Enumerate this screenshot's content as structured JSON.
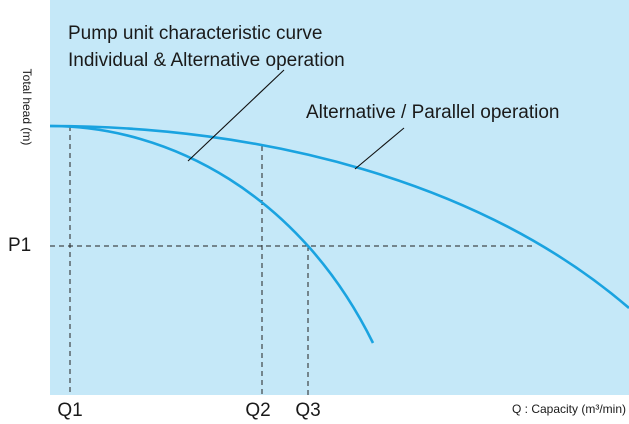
{
  "y_axis_label": "Total head (m)",
  "x_axis_label": "Q : Capacity (m³/min)",
  "head_labels": [
    "P1"
  ],
  "capacity_labels": [
    "Q1",
    "Q2",
    "Q3"
  ],
  "annotations": {
    "individual": [
      "Pump unit characteristic curve",
      "Individual & Alternative operation"
    ],
    "parallel": "Alternative / Parallel operation"
  }
}
